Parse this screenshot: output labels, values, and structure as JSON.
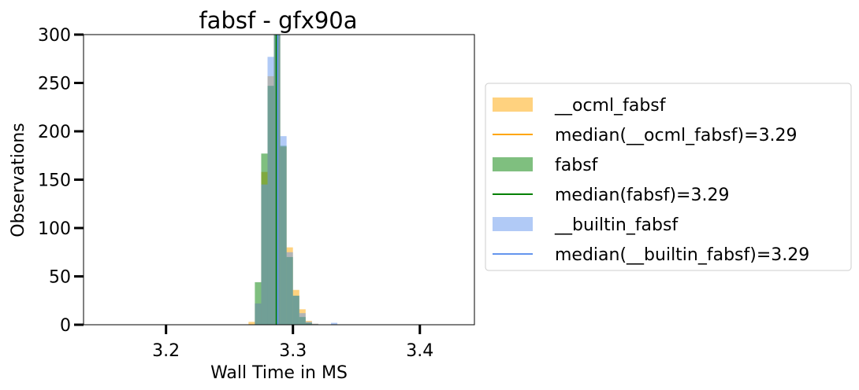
{
  "chart_data": {
    "type": "histogram",
    "title": "fabsf - gfx90a",
    "xlabel": "Wall Time in MS",
    "ylabel": "Observations",
    "xlim": [
      3.135,
      3.443
    ],
    "ylim": [
      0,
      300
    ],
    "xticks": [
      3.2,
      3.3,
      3.4
    ],
    "xtick_labels": [
      "3.2",
      "3.3",
      "3.4"
    ],
    "yticks": [
      0,
      50,
      100,
      150,
      200,
      250,
      300
    ],
    "ytick_labels": [
      "0",
      "50",
      "100",
      "150",
      "200",
      "250",
      "300"
    ],
    "bin_width": 0.005,
    "legend_position": "right, outside",
    "series": [
      {
        "name": "__ocml_fabsf",
        "color": "#ffa500",
        "opacity": 0.5,
        "bins": [
          [
            3.2675,
            3
          ],
          [
            3.2725,
            22
          ],
          [
            3.2775,
            158
          ],
          [
            3.2825,
            257
          ],
          [
            3.2875,
            300
          ],
          [
            3.2925,
            184
          ],
          [
            3.2975,
            80
          ],
          [
            3.3025,
            36
          ],
          [
            3.3075,
            16
          ],
          [
            3.3125,
            4
          ],
          [
            3.3175,
            1
          ]
        ],
        "median_label": "median(__ocml_fabsf)=3.29",
        "median": 3.288
      },
      {
        "name": "fabsf",
        "color": "#008000",
        "opacity": 0.5,
        "bins": [
          [
            3.2725,
            44
          ],
          [
            3.2775,
            177
          ],
          [
            3.2825,
            247
          ],
          [
            3.2875,
            300
          ],
          [
            3.2925,
            185
          ],
          [
            3.2975,
            70
          ],
          [
            3.3025,
            30
          ],
          [
            3.3075,
            8
          ],
          [
            3.3125,
            2
          ]
        ],
        "median_label": "median(fabsf)=3.29",
        "median": 3.287
      },
      {
        "name": "__builtin_fabsf",
        "color": "#6495ed",
        "opacity": 0.5,
        "bins": [
          [
            3.2725,
            22
          ],
          [
            3.2775,
            145
          ],
          [
            3.2825,
            277
          ],
          [
            3.2875,
            300
          ],
          [
            3.2925,
            195
          ],
          [
            3.2975,
            75
          ],
          [
            3.3025,
            30
          ],
          [
            3.3075,
            12
          ],
          [
            3.3125,
            3
          ],
          [
            3.3175,
            1
          ],
          [
            3.3325,
            2
          ]
        ],
        "median_label": "median(__builtin_fabsf)=3.29",
        "median": 3.288
      }
    ]
  }
}
